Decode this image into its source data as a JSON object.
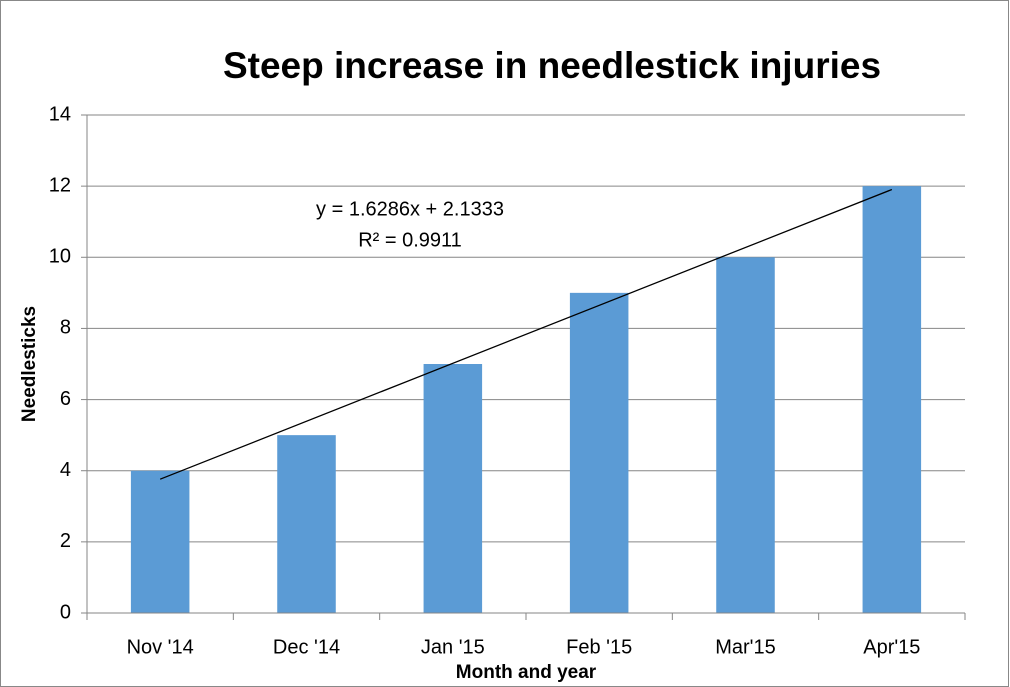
{
  "chart_data": {
    "type": "bar",
    "title": "Steep increase in needlestick injuries",
    "x_label": "Month and year",
    "y_label": "Needlesticks",
    "categories": [
      "Nov '14",
      "Dec '14",
      "Jan '15",
      "Feb '15",
      "Mar'15",
      "Apr'15"
    ],
    "values": [
      4,
      5,
      7,
      9,
      10,
      12
    ],
    "color": "#5b9bd5",
    "ylim": [
      0,
      14
    ],
    "yticks": [
      0,
      2,
      4,
      6,
      8,
      10,
      12,
      14
    ],
    "grid": true,
    "trendline": {
      "slope": 1.6286,
      "intercept": 2.1333,
      "equation": "y = 1.6286x + 2.1333",
      "r_squared": "R² = 0.9911"
    }
  }
}
